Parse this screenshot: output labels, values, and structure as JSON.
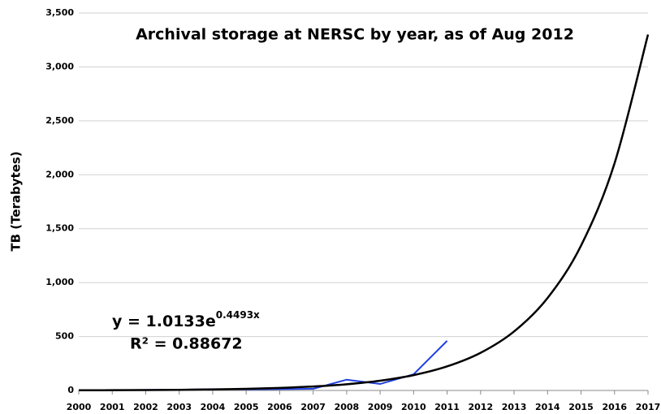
{
  "chart_data": {
    "type": "line",
    "title": "Archival storage at NERSC by year, as of Aug 2012",
    "y_label": "TB (Terabytes)",
    "equation": {
      "base": "y = 1.0133e",
      "exponent": "0.4493x"
    },
    "r_squared": "R² = 0.88672",
    "categories": [
      "2000",
      "2001",
      "2002",
      "2003",
      "2004",
      "2005",
      "2006",
      "2007",
      "2008",
      "2009",
      "2010",
      "2011",
      "2012",
      "2013",
      "2014",
      "2015",
      "2016",
      "2017"
    ],
    "series": [
      {
        "color": "#2040e0",
        "values": [
          2,
          3,
          5,
          7,
          12,
          10,
          12,
          15,
          100,
          60,
          150,
          460,
          null,
          null,
          null,
          null,
          null,
          null
        ]
      },
      {
        "color": "#000000",
        "smooth": true,
        "values": [
          1.59,
          2.49,
          3.9,
          6.11,
          9.58,
          15.0,
          23.5,
          36.9,
          57.8,
          90.6,
          142,
          223,
          349,
          547,
          857,
          1343,
          2106,
          3300
        ]
      }
    ],
    "ylim": [
      0,
      3500
    ],
    "yticks": [
      0,
      500,
      {
        "value": 1000,
        "label": "1,000"
      },
      {
        "value": 1500,
        "label": "1,500"
      },
      {
        "value": 2000,
        "label": "2,000"
      },
      {
        "value": 2500,
        "label": "2,500"
      },
      {
        "value": 3000,
        "label": "3,000"
      },
      {
        "value": 3500,
        "label": "3,500"
      }
    ],
    "grid": true
  }
}
